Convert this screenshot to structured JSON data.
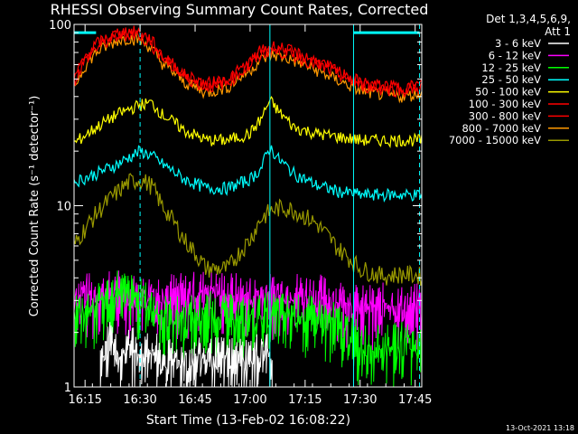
{
  "footer": {
    "timestamp": "13-Oct-2021 13:18"
  },
  "chart_data": {
    "type": "line",
    "title": "RHESSI Observing Summary Count Rates, Corrected",
    "xlabel": "Start Time (13-Feb-02 16:08:22)",
    "ylabel": "Corrected Count Rate (s⁻¹ detector⁻¹)",
    "y_scale": "log",
    "ylim": [
      1,
      100
    ],
    "y_ticks": [
      1,
      10,
      100
    ],
    "y_ticklabels": [
      "1",
      "10",
      "100"
    ],
    "xlim_minutes": [
      16.2,
      17.78
    ],
    "x_ticks": [
      16.25,
      16.5,
      16.75,
      17.0,
      17.25,
      17.5,
      17.75
    ],
    "x_ticklabels": [
      "16:15",
      "16:30",
      "16:45",
      "17:00",
      "17:15",
      "17:30",
      "17:45"
    ],
    "grid": false,
    "legend_placement": "right",
    "legend_header": [
      "Det 1,3,4,5,6,9,",
      "Att 1"
    ],
    "vertical_markers": [
      {
        "t": 16.5,
        "style": "dashed"
      },
      {
        "t": 17.09,
        "style": "solid"
      },
      {
        "t": 17.47,
        "style": "solid"
      },
      {
        "t": 17.77,
        "style": "dashed"
      }
    ],
    "flag_bars": [
      {
        "from": 16.2,
        "to": 16.3,
        "level": 90
      },
      {
        "from": 17.47,
        "to": 17.77,
        "level": 90
      }
    ],
    "series": [
      {
        "name": "3 - 6 keV",
        "color": "#ffffff",
        "x": [
          16.32,
          16.36,
          16.4,
          16.44,
          16.48,
          16.52,
          16.56,
          16.6,
          17.02,
          17.06,
          17.1
        ],
        "y": [
          1.7,
          1.9,
          1.6,
          1.8,
          1.9,
          1.6,
          1.7,
          1.5,
          1.6,
          1.8,
          1.5
        ]
      },
      {
        "name": "6 - 12 keV",
        "color": "#ff00ff",
        "x": [
          16.2,
          16.3,
          16.4,
          16.5,
          16.6,
          16.7,
          16.8,
          16.9,
          17.0,
          17.1,
          17.2,
          17.3,
          17.4,
          17.5,
          17.6,
          17.7,
          17.78
        ],
        "y": [
          3.6,
          3.5,
          3.7,
          3.4,
          3.6,
          3.5,
          3.7,
          3.6,
          3.4,
          3.5,
          3.6,
          3.5,
          3.3,
          3.0,
          3.1,
          3.0,
          3.1
        ]
      },
      {
        "name": "12 - 25 keV",
        "color": "#00ff00",
        "x": [
          16.2,
          16.3,
          16.4,
          16.5,
          16.6,
          16.7,
          16.8,
          16.9,
          17.0,
          17.1,
          17.2,
          17.3,
          17.4,
          17.5,
          17.6,
          17.7,
          17.78
        ],
        "y": [
          2.8,
          3.0,
          3.8,
          3.3,
          2.7,
          2.6,
          2.8,
          2.7,
          2.6,
          2.8,
          2.7,
          2.6,
          2.4,
          1.9,
          1.8,
          1.9,
          1.8
        ]
      },
      {
        "name": "25 - 50 keV",
        "color": "#00ffff",
        "x": [
          16.2,
          16.3,
          16.4,
          16.5,
          16.55,
          16.6,
          16.7,
          16.8,
          16.9,
          17.0,
          17.05,
          17.09,
          17.13,
          17.2,
          17.3,
          17.4,
          17.5,
          17.6,
          17.7,
          17.78
        ],
        "y": [
          13.5,
          15,
          17,
          20,
          19,
          17,
          14,
          12.5,
          12.5,
          14,
          16,
          21,
          18,
          15,
          13,
          12,
          11.5,
          11.5,
          11.5,
          11.5
        ]
      },
      {
        "name": "50 - 100 keV",
        "color": "#ffff00",
        "x": [
          16.2,
          16.3,
          16.4,
          16.5,
          16.55,
          16.6,
          16.7,
          16.8,
          16.9,
          17.0,
          17.05,
          17.09,
          17.13,
          17.2,
          17.3,
          17.4,
          17.5,
          17.6,
          17.7,
          17.78
        ],
        "y": [
          22,
          27,
          32,
          36,
          37,
          32,
          26,
          23,
          23,
          25,
          30,
          38,
          33,
          27,
          25,
          24,
          23,
          23,
          23,
          23
        ]
      },
      {
        "name": "100 - 300 keV",
        "color": "#ff0000",
        "x": [
          16.2,
          16.25,
          16.3,
          16.4,
          16.45,
          16.5,
          16.55,
          16.6,
          16.7,
          16.8,
          16.9,
          17.0,
          17.05,
          17.1,
          17.15,
          17.2,
          17.3,
          17.4,
          17.5,
          17.6,
          17.7,
          17.78
        ],
        "y": [
          50,
          66,
          78,
          90,
          92,
          90,
          82,
          68,
          53,
          47,
          50,
          62,
          72,
          76,
          74,
          70,
          63,
          55,
          48,
          46,
          45,
          47
        ]
      },
      {
        "name": "300 - 800 keV",
        "color": "#ff0000",
        "x": [
          16.2,
          16.25,
          16.3,
          16.4,
          16.45,
          16.5,
          16.55,
          16.6,
          16.7,
          16.8,
          16.9,
          17.0,
          17.05,
          17.1,
          17.15,
          17.2,
          17.3,
          17.4,
          17.5,
          17.6,
          17.7,
          17.78
        ],
        "y": [
          48,
          63,
          74,
          86,
          88,
          86,
          78,
          65,
          51,
          45,
          48,
          59,
          68,
          72,
          70,
          67,
          60,
          53,
          46,
          44,
          43,
          45
        ]
      },
      {
        "name": "800 - 7000 keV",
        "color": "#ff9900",
        "x": [
          16.2,
          16.25,
          16.3,
          16.4,
          16.45,
          16.5,
          16.55,
          16.6,
          16.7,
          16.8,
          16.9,
          17.0,
          17.05,
          17.1,
          17.15,
          17.2,
          17.3,
          17.4,
          17.5,
          17.6,
          17.7,
          17.78
        ],
        "y": [
          45,
          59,
          70,
          82,
          84,
          82,
          74,
          61,
          48,
          42,
          45,
          56,
          64,
          68,
          66,
          63,
          56,
          49,
          43,
          41,
          40,
          42
        ]
      },
      {
        "name": "7000 - 15000 keV",
        "color": "#999900",
        "x": [
          16.2,
          16.3,
          16.4,
          16.45,
          16.5,
          16.55,
          16.6,
          16.7,
          16.8,
          16.9,
          17.0,
          17.05,
          17.1,
          17.15,
          17.2,
          17.3,
          17.4,
          17.5,
          17.6,
          17.7,
          17.78
        ],
        "y": [
          6,
          9,
          12,
          13.5,
          14,
          13,
          10,
          6.5,
          4.5,
          4.5,
          6.5,
          8.5,
          9.5,
          9.8,
          9.5,
          8,
          5.8,
          4.5,
          4.1,
          4.2,
          4.1
        ]
      }
    ]
  }
}
